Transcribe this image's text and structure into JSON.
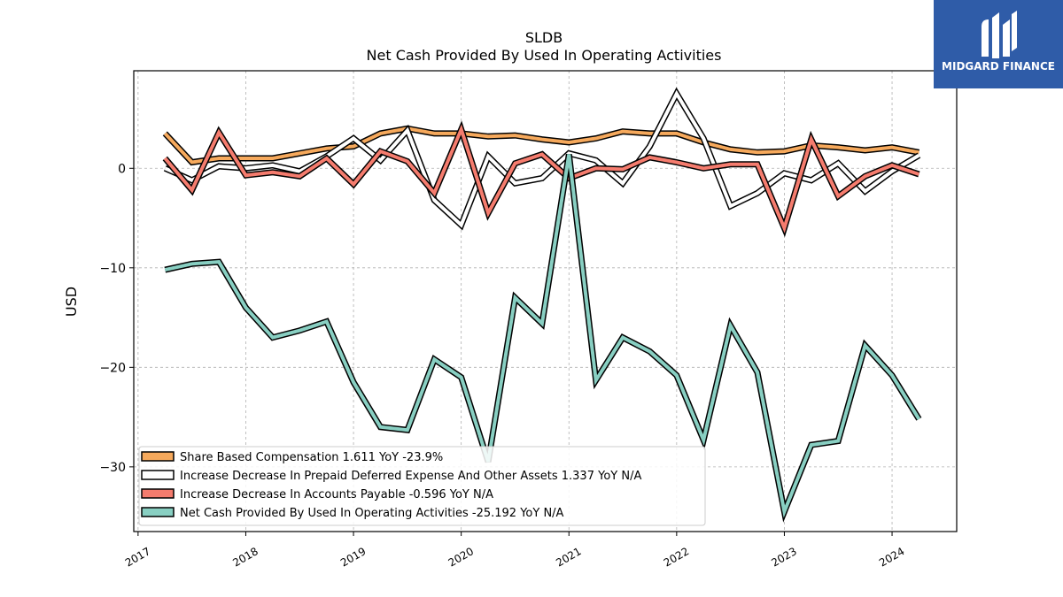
{
  "brand": {
    "name": "MIDGARD FINANCE",
    "color": "#2f5ca8"
  },
  "chart_data": {
    "type": "line",
    "title": "SLDB",
    "subtitle": "Net Cash Provided By Used In Operating Activities",
    "ylabel": "USD",
    "xlabel": "",
    "xlim": [
      2016.96,
      2024.6
    ],
    "ylim": [
      -36.5,
      9.8
    ],
    "grid": true,
    "legend_position": "lower-left",
    "xticks": [
      2017,
      2018,
      2019,
      2020,
      2021,
      2022,
      2023,
      2024
    ],
    "yticks": [
      0,
      -10,
      -20,
      -30
    ],
    "ytick_labels": [
      "0",
      "−10",
      "−20",
      "−30"
    ],
    "x": [
      2017.25,
      2017.5,
      2017.75,
      2018.0,
      2018.25,
      2018.5,
      2018.75,
      2019.0,
      2019.25,
      2019.5,
      2019.75,
      2020.0,
      2020.25,
      2020.5,
      2020.75,
      2021.0,
      2021.25,
      2021.5,
      2021.75,
      2022.0,
      2022.25,
      2022.5,
      2022.75,
      2023.0,
      2023.25,
      2023.5,
      2023.75,
      2024.0,
      2024.25
    ],
    "series": [
      {
        "name": "Share Based Compensation",
        "legend_label": "Share Based Compensation  1.611 YoY -23.9%",
        "color": "#f6a95c",
        "values": [
          3.5,
          0.6,
          1.0,
          1.0,
          1.0,
          1.5,
          2.0,
          2.2,
          3.5,
          4.0,
          3.5,
          3.5,
          3.2,
          3.3,
          2.9,
          2.6,
          3.0,
          3.7,
          3.5,
          3.5,
          2.6,
          1.9,
          1.6,
          1.7,
          2.3,
          2.1,
          1.8,
          2.1,
          1.6
        ]
      },
      {
        "name": "Increase Decrease In Prepaid Deferred Expense And Other Assets",
        "legend_label": "Increase Decrease In Prepaid Deferred Expense And Other Assets  1.337 YoY N/A",
        "color": "#ffffff",
        "values": [
          0.0,
          -1.2,
          0.2,
          0.0,
          0.3,
          -0.3,
          1.2,
          3.0,
          0.8,
          3.8,
          -3.2,
          -5.7,
          1.2,
          -1.5,
          -1.0,
          1.5,
          0.8,
          -1.5,
          2.2,
          7.5,
          3.0,
          -3.8,
          -2.5,
          -0.5,
          -1.2,
          0.5,
          -2.3,
          -0.3,
          1.3
        ]
      },
      {
        "name": "Increase Decrease In Accounts Payable",
        "legend_label": "Increase Decrease In Accounts Payable  -0.596 YoY N/A",
        "color": "#f57c6e",
        "values": [
          1.0,
          -2.2,
          3.6,
          -0.7,
          -0.4,
          -0.8,
          1.0,
          -1.6,
          1.7,
          0.7,
          -2.5,
          3.9,
          -4.5,
          0.5,
          1.4,
          -1.0,
          0.0,
          -0.1,
          1.1,
          0.6,
          0.0,
          0.4,
          0.4,
          -6.0,
          2.9,
          -2.8,
          -0.8,
          0.3,
          -0.6
        ]
      },
      {
        "name": "Net Cash Provided By Used In Operating Activities",
        "legend_label": "Net Cash Provided By Used In Operating Activities  -25.192 YoY N/A",
        "color": "#88cfc2",
        "values": [
          -10.2,
          -9.6,
          -9.4,
          -14.0,
          -17.0,
          -16.3,
          -15.4,
          -21.5,
          -26.0,
          -26.3,
          -19.2,
          -21.0,
          -29.5,
          -13.0,
          -15.6,
          1.4,
          -21.3,
          -17.0,
          -18.4,
          -20.8,
          -27.3,
          -15.8,
          -20.5,
          -34.5,
          -27.8,
          -27.4,
          -17.8,
          -20.8,
          -25.2
        ]
      }
    ]
  }
}
